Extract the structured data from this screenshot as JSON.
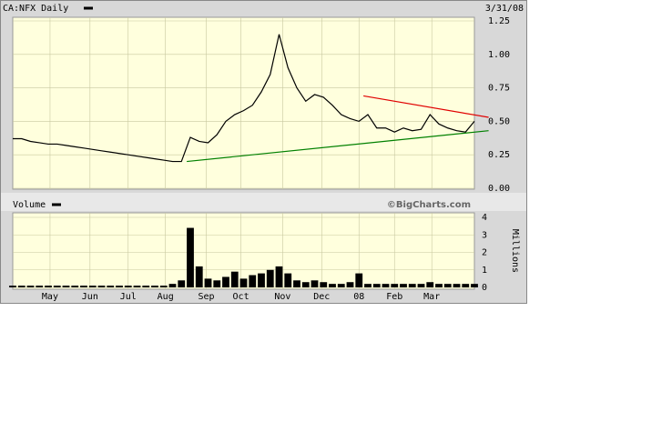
{
  "chart_data": [
    {
      "type": "line",
      "title": "CA:NFX Daily",
      "date_label": "3/31/08",
      "x": [
        0,
        1,
        2,
        3,
        4,
        5,
        6,
        7,
        8,
        9,
        10,
        11,
        12,
        13,
        14,
        15,
        16,
        17,
        18,
        19,
        20,
        21,
        22,
        23,
        24,
        25,
        26,
        27,
        28,
        29,
        30,
        31,
        32,
        33,
        34,
        35,
        36,
        37,
        38,
        39,
        40,
        41,
        42,
        43,
        44,
        45,
        46,
        47,
        48,
        49,
        50,
        51,
        52
      ],
      "series": [
        {
          "name": "CA:NFX Daily",
          "color": "#000000",
          "values": [
            0.37,
            0.37,
            0.35,
            0.34,
            0.33,
            0.33,
            0.32,
            0.31,
            0.3,
            0.29,
            0.28,
            0.27,
            0.26,
            0.25,
            0.24,
            0.23,
            0.22,
            0.21,
            0.2,
            0.2,
            0.38,
            0.35,
            0.34,
            0.4,
            0.5,
            0.55,
            0.58,
            0.62,
            0.72,
            0.85,
            1.15,
            0.9,
            0.75,
            0.65,
            0.7,
            0.68,
            0.62,
            0.55,
            0.52,
            0.5,
            0.55,
            0.45,
            0.45,
            0.42,
            0.45,
            0.43,
            0.44,
            0.55,
            0.48,
            0.45,
            0.43,
            0.42,
            0.5
          ]
        }
      ],
      "trendlines": [
        {
          "color": "#008000",
          "x": [
            19.6,
            53.6
          ],
          "y": [
            0.2,
            0.43
          ]
        },
        {
          "color": "#e00000",
          "x": [
            39.5,
            53.6
          ],
          "y": [
            0.69,
            0.53
          ]
        }
      ],
      "xlim": [
        0,
        52
      ],
      "ylim": [
        0,
        1.25
      ],
      "yticks": [
        {
          "value": 0,
          "label": "0.00"
        },
        0.25,
        {
          "value": 0.5,
          "label": "0.50"
        },
        0.75,
        {
          "value": 1,
          "label": "1.00"
        },
        1.25
      ],
      "grid": true
    },
    {
      "type": "bar",
      "title": "Volume",
      "annotation": "©BigCharts.com",
      "y_label": "Millions",
      "x": [
        0,
        1,
        2,
        3,
        4,
        5,
        6,
        7,
        8,
        9,
        10,
        11,
        12,
        13,
        14,
        15,
        16,
        17,
        18,
        19,
        20,
        21,
        22,
        23,
        24,
        25,
        26,
        27,
        28,
        29,
        30,
        31,
        32,
        33,
        34,
        35,
        36,
        37,
        38,
        39,
        40,
        41,
        42,
        43,
        44,
        45,
        46,
        47,
        48,
        49,
        50,
        51,
        52
      ],
      "series": [
        {
          "name": "Volume",
          "color": "#000000",
          "values": [
            0.1,
            0.1,
            0.1,
            0.1,
            0.1,
            0.1,
            0.1,
            0.1,
            0.1,
            0.1,
            0.1,
            0.1,
            0.1,
            0.1,
            0.1,
            0.1,
            0.1,
            0.1,
            0.2,
            0.4,
            3.4,
            1.2,
            0.5,
            0.4,
            0.6,
            0.9,
            0.5,
            0.7,
            0.8,
            1.0,
            1.2,
            0.8,
            0.4,
            0.3,
            0.4,
            0.3,
            0.2,
            0.2,
            0.3,
            0.8,
            0.2,
            0.2,
            0.2,
            0.2,
            0.2,
            0.2,
            0.2,
            0.3,
            0.2,
            0.2,
            0.2,
            0.2,
            0.2
          ]
        }
      ],
      "xlim": [
        0,
        52
      ],
      "ylim": [
        0,
        4
      ],
      "yticks": [
        0,
        1,
        2,
        3,
        4
      ],
      "xticks": [
        {
          "value": 4.2,
          "label": "May"
        },
        {
          "value": 8.7,
          "label": "Jun"
        },
        {
          "value": 13,
          "label": "Jul"
        },
        {
          "value": 17.2,
          "label": "Aug"
        },
        {
          "value": 21.8,
          "label": "Sep"
        },
        {
          "value": 25.7,
          "label": "Oct"
        },
        {
          "value": 30.4,
          "label": "Nov"
        },
        {
          "value": 34.8,
          "label": "Dec"
        },
        {
          "value": 39,
          "label": "08"
        },
        {
          "value": 43,
          "label": "Feb"
        },
        {
          "value": 47.2,
          "label": "Mar"
        }
      ],
      "grid": true
    }
  ]
}
